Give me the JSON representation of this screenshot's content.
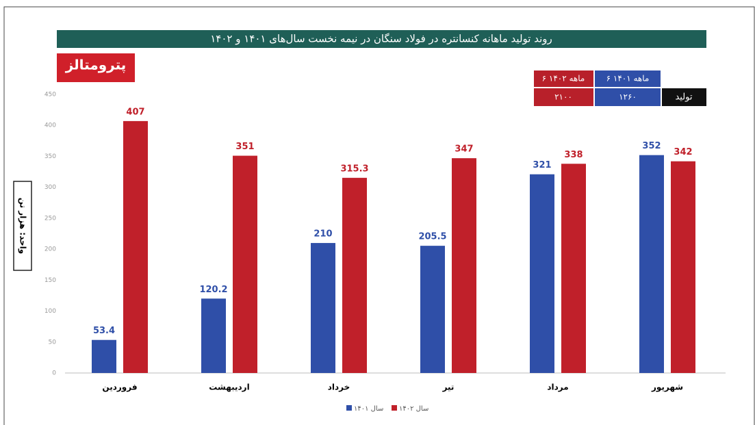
{
  "chart_data": {
    "type": "bar",
    "title": "روند تولید ماهانه کنسانتره در فولاد سنگان در نیمه نخست سال‌های ۱۴۰۱ و ۱۴۰۲",
    "logo": "پترومتالز",
    "y_label": "واحد: هزار تن",
    "categories": [
      "فروردین",
      "اردیبهشت",
      "خرداد",
      "تیر",
      "مرداد",
      "شهریور"
    ],
    "series": [
      {
        "name": "سال ۱۴۰۱",
        "color": "#2f4fa8",
        "values": [
          53.4,
          120.2,
          210,
          205.5,
          321,
          352
        ]
      },
      {
        "name": "سال ۱۴۰۲",
        "color": "#c0202a",
        "values": [
          407,
          351,
          315.3,
          347,
          338,
          342
        ]
      }
    ],
    "ylim": [
      0,
      450
    ],
    "yticks": [
      0,
      50,
      100,
      150,
      200,
      250,
      300,
      350,
      400,
      450
    ],
    "summary_table": {
      "headers": [
        "۶ ماهه ۱۴۰۱",
        "۶ ماهه ۱۴۰۲"
      ],
      "row_label": "تولید",
      "values": [
        "۱۲۶۰",
        "۲۱۰۰"
      ]
    }
  }
}
